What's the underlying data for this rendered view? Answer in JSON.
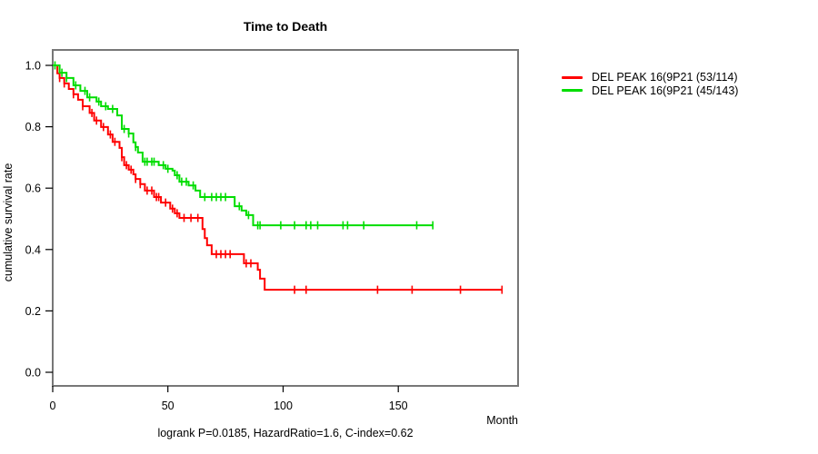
{
  "chart_data": {
    "type": "line",
    "chart_kind": "kaplan-meier-step",
    "title": "Time to Death",
    "xlabel": "Month",
    "ylabel": "cumulative survival rate",
    "footer": "logrank P=0.0185, HazardRatio=1.6, C-index=0.62",
    "x_ticks": [
      0,
      50,
      100,
      150
    ],
    "y_ticks": [
      "0.0",
      "0.2",
      "0.4",
      "0.6",
      "0.8",
      "1.0"
    ],
    "xlim": [
      0,
      202
    ],
    "ylim": [
      0,
      1
    ],
    "grid": false,
    "legend_position": "right-of-plot",
    "frame_color": "#777777",
    "axis_color": "#000000",
    "series": [
      {
        "name": "DEL PEAK 16(9P21 (53/114)",
        "color": "#ff0000",
        "steps": [
          [
            0,
            1.0
          ],
          [
            2,
            0.974
          ],
          [
            3,
            0.959
          ],
          [
            5,
            0.941
          ],
          [
            7,
            0.923
          ],
          [
            9,
            0.906
          ],
          [
            11,
            0.888
          ],
          [
            13,
            0.867
          ],
          [
            16,
            0.845
          ],
          [
            18,
            0.82
          ],
          [
            21,
            0.799
          ],
          [
            24,
            0.775
          ],
          [
            26,
            0.751
          ],
          [
            29,
            0.731
          ],
          [
            30,
            0.701
          ],
          [
            31,
            0.675
          ],
          [
            33,
            0.66
          ],
          [
            35,
            0.645
          ],
          [
            36,
            0.63
          ],
          [
            38,
            0.613
          ],
          [
            40,
            0.592
          ],
          [
            44,
            0.571
          ],
          [
            47,
            0.553
          ],
          [
            51,
            0.533
          ],
          [
            53,
            0.518
          ],
          [
            55,
            0.503
          ],
          [
            65,
            0.467
          ],
          [
            66,
            0.437
          ],
          [
            67,
            0.414
          ],
          [
            69,
            0.385
          ],
          [
            83,
            0.355
          ],
          [
            89,
            0.334
          ],
          [
            90,
            0.305
          ],
          [
            92,
            0.269
          ]
        ],
        "end_month": 195,
        "censor_months": [
          3,
          5,
          9,
          13,
          17,
          19,
          22,
          25,
          27,
          30,
          32,
          34,
          36,
          38,
          41,
          43,
          45,
          46,
          49,
          52,
          54,
          57,
          60,
          63,
          71,
          73,
          75,
          77,
          84,
          86,
          105,
          110,
          141,
          156,
          177,
          195
        ]
      },
      {
        "name": "DEL PEAK 16(9P21 (45/143)",
        "color": "#00dd00",
        "steps": [
          [
            0,
            1.0
          ],
          [
            3,
            0.976
          ],
          [
            6,
            0.959
          ],
          [
            9,
            0.935
          ],
          [
            12,
            0.917
          ],
          [
            15,
            0.896
          ],
          [
            19,
            0.882
          ],
          [
            21,
            0.867
          ],
          [
            24,
            0.858
          ],
          [
            28,
            0.837
          ],
          [
            30,
            0.793
          ],
          [
            33,
            0.778
          ],
          [
            35,
            0.749
          ],
          [
            36,
            0.734
          ],
          [
            37,
            0.716
          ],
          [
            39,
            0.686
          ],
          [
            46,
            0.675
          ],
          [
            49,
            0.663
          ],
          [
            52,
            0.657
          ],
          [
            53,
            0.642
          ],
          [
            55,
            0.621
          ],
          [
            59,
            0.609
          ],
          [
            62,
            0.592
          ],
          [
            64,
            0.571
          ],
          [
            79,
            0.541
          ],
          [
            82,
            0.527
          ],
          [
            84,
            0.512
          ],
          [
            87,
            0.479
          ]
        ],
        "end_month": 165,
        "censor_months": [
          1,
          4,
          6,
          10,
          14,
          16,
          20,
          23,
          26,
          31,
          33,
          36,
          40,
          41,
          43,
          44,
          48,
          50,
          54,
          56,
          58,
          61,
          66,
          69,
          71,
          73,
          75,
          81,
          85,
          89,
          90,
          99,
          105,
          110,
          112,
          115,
          126,
          128,
          135,
          158,
          165
        ]
      }
    ]
  }
}
